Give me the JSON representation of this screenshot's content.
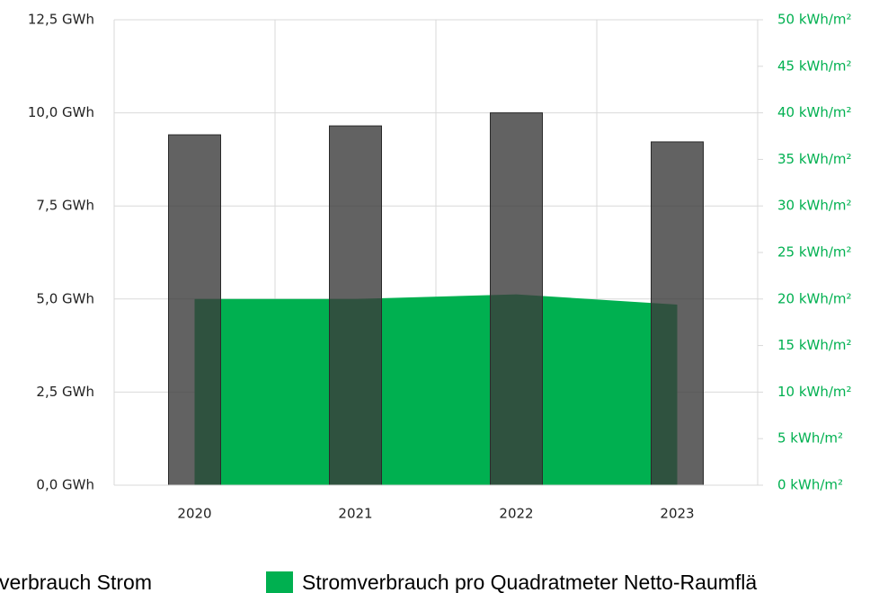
{
  "chart_data": {
    "type": "bar",
    "categories": [
      "2020",
      "2021",
      "2022",
      "2023"
    ],
    "series": [
      {
        "name": "verbrauch Strom",
        "type": "bar",
        "color": "#3b3b3b",
        "values": [
          9.41,
          9.65,
          10.0,
          9.22
        ]
      },
      {
        "name": "Stromverbrauch pro Quadratmeter Netto-Raumflä",
        "type": "area",
        "axis": "y2",
        "color": "#00b050",
        "values": [
          20,
          20,
          20.5,
          19.4
        ]
      }
    ],
    "ylim": [
      0,
      12.5
    ],
    "yticks": [
      {
        "value": 0,
        "label": "0,0 GWh"
      },
      {
        "value": 2.5,
        "label": "2,5 GWh"
      },
      {
        "value": 5,
        "label": "5,0 GWh"
      },
      {
        "value": 7.5,
        "label": "7,5 GWh"
      },
      {
        "value": 10,
        "label": "10,0 GWh"
      },
      {
        "value": 12.5,
        "label": "12,5 GWh"
      }
    ],
    "y2lim": [
      0,
      50
    ],
    "y2ticks": [
      {
        "value": 0,
        "label": "0 kWh/m²"
      },
      {
        "value": 5,
        "label": "5 kWh/m²"
      },
      {
        "value": 10,
        "label": "10 kWh/m²"
      },
      {
        "value": 15,
        "label": "15 kWh/m²"
      },
      {
        "value": 20,
        "label": "20 kWh/m²"
      },
      {
        "value": 25,
        "label": "25 kWh/m²"
      },
      {
        "value": 30,
        "label": "30 kWh/m²"
      },
      {
        "value": 35,
        "label": "35 kWh/m²"
      },
      {
        "value": 40,
        "label": "40 kWh/m²"
      },
      {
        "value": 45,
        "label": "45 kWh/m²"
      },
      {
        "value": 50,
        "label": "50 kWh/m²"
      }
    ],
    "grid": true
  }
}
